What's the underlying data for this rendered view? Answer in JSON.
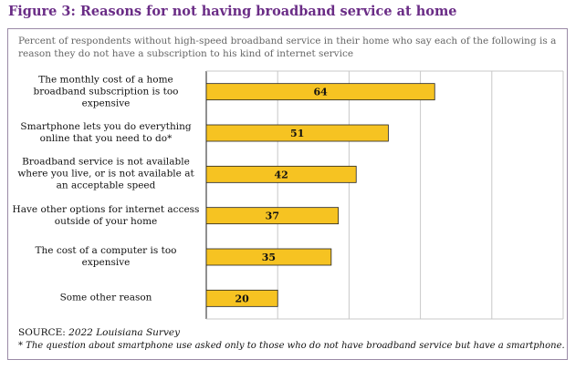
{
  "chart_data": {
    "type": "bar",
    "orientation": "horizontal",
    "title": "Figure 3: Reasons for not having broadband service at home",
    "subtitle": "Percent of respondents without high-speed broadband service in their home who say each of the following is a reason they do not have a subscription to his kind of internet service",
    "categories": [
      "The monthly cost of a home broadband subscription is too expensive",
      "Smartphone lets you do everything online that you need to do*",
      "Broadband service is not available where you live, or is not available at an acceptable speed",
      "Have other options for internet access outside of your home",
      "The cost of a computer is too expensive",
      "Some other reason"
    ],
    "values": [
      64,
      51,
      42,
      37,
      35,
      20
    ],
    "color": "#f6c322",
    "xlim": [
      0,
      100
    ],
    "xticks": [
      0,
      20,
      40,
      60,
      80,
      100
    ],
    "grid": true,
    "source_label": "SOURCE:",
    "source": "2022 Louisiana Survey",
    "footnote": "* The question about smartphone use asked only to those who do not have broadband service but have a smartphone."
  }
}
